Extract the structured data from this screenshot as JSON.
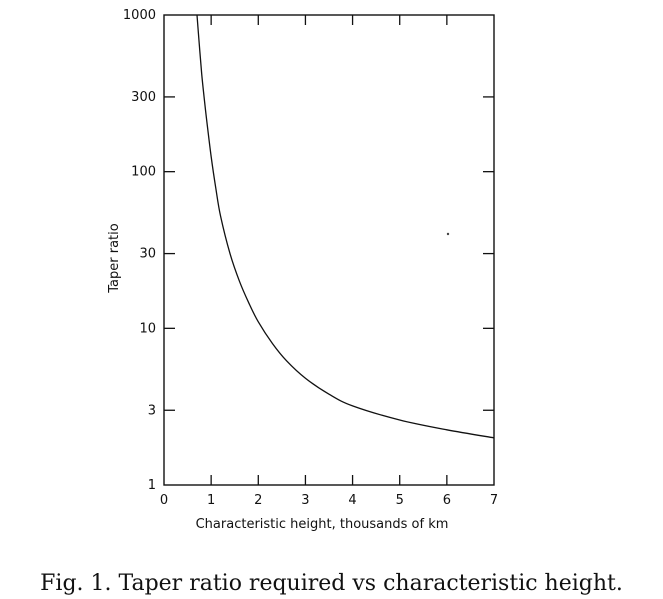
{
  "chart_data": {
    "type": "line",
    "title": "",
    "xlabel": "Characteristic height,  thousands of km",
    "ylabel": "Taper ratio",
    "xlim": [
      0,
      7
    ],
    "ylim": [
      1,
      1000
    ],
    "yscale": "log",
    "x_ticks": [
      0,
      1,
      2,
      3,
      4,
      5,
      6,
      7
    ],
    "x_tick_labels": [
      "0",
      "1",
      "2",
      "3",
      "4",
      "5",
      "6",
      "7"
    ],
    "y_ticks": [
      1,
      3,
      10,
      30,
      100,
      300,
      1000
    ],
    "y_tick_labels": [
      "1",
      "3",
      "10",
      "30",
      "100",
      "300",
      "1000"
    ],
    "series": [
      {
        "name": "Taper ratio",
        "x": [
          0.7,
          0.75,
          0.8,
          0.85,
          0.9,
          1.0,
          1.1,
          1.2,
          1.4,
          1.6,
          1.8,
          2.0,
          2.3,
          2.6,
          3.0,
          3.5,
          4.0,
          5.0,
          6.0,
          7.0
        ],
        "y": [
          1000,
          640,
          420,
          300,
          220,
          125,
          78,
          52,
          30,
          20,
          14.5,
          11,
          8,
          6.2,
          4.8,
          3.8,
          3.2,
          2.6,
          2.25,
          2.0
        ]
      }
    ]
  },
  "caption": "Fig.  1.  Taper ratio required vs characteristic height."
}
